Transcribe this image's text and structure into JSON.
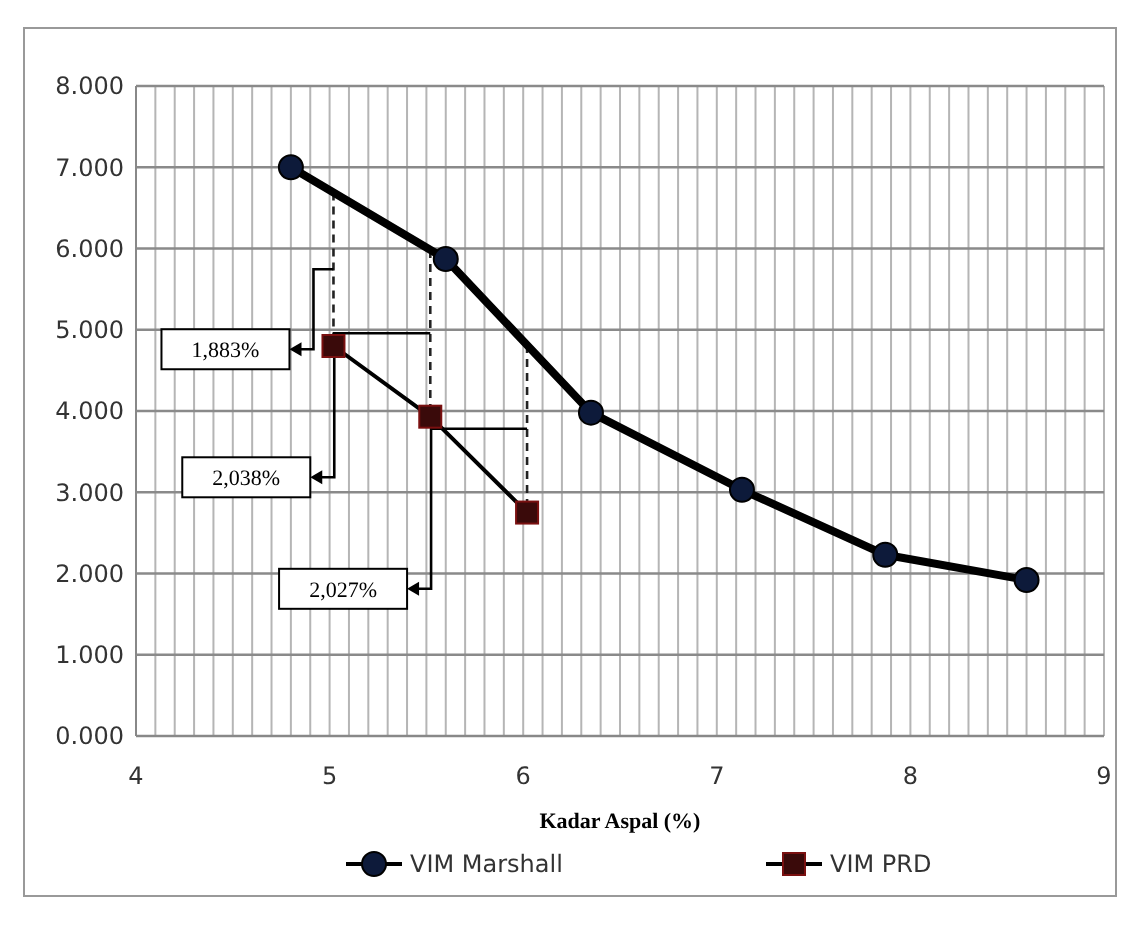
{
  "chart_data": {
    "type": "line",
    "xlabel": "Kadar Aspal (%)",
    "xlim": [
      4,
      9
    ],
    "xticks": [
      4,
      {
        "value": 4.1,
        "label": null
      },
      {
        "value": 4.2,
        "label": null
      },
      {
        "value": 4.3,
        "label": null
      },
      {
        "value": 4.4,
        "label": null
      },
      {
        "value": 4.5,
        "label": null
      },
      {
        "value": 4.6,
        "label": null
      },
      {
        "value": 4.7,
        "label": null
      },
      {
        "value": 4.8,
        "label": null
      },
      {
        "value": 4.9,
        "label": null
      },
      5,
      {
        "value": 5.1,
        "label": null
      },
      {
        "value": 5.2,
        "label": null
      },
      {
        "value": 5.3,
        "label": null
      },
      {
        "value": 5.4,
        "label": null
      },
      {
        "value": 5.5,
        "label": null
      },
      {
        "value": 5.6,
        "label": null
      },
      {
        "value": 5.7,
        "label": null
      },
      {
        "value": 5.8,
        "label": null
      },
      {
        "value": 5.9,
        "label": null
      },
      6,
      {
        "value": 6.1,
        "label": null
      },
      {
        "value": 6.2,
        "label": null
      },
      {
        "value": 6.3,
        "label": null
      },
      {
        "value": 6.4,
        "label": null
      },
      {
        "value": 6.5,
        "label": null
      },
      {
        "value": 6.6,
        "label": null
      },
      {
        "value": 6.7,
        "label": null
      },
      {
        "value": 6.8,
        "label": null
      },
      {
        "value": 6.9,
        "label": null
      },
      7,
      {
        "value": 7.1,
        "label": null
      },
      {
        "value": 7.2,
        "label": null
      },
      {
        "value": 7.3,
        "label": null
      },
      {
        "value": 7.4,
        "label": null
      },
      {
        "value": 7.5,
        "label": null
      },
      {
        "value": 7.6,
        "label": null
      },
      {
        "value": 7.7,
        "label": null
      },
      {
        "value": 7.8,
        "label": null
      },
      {
        "value": 7.9,
        "label": null
      },
      8,
      {
        "value": 8.1,
        "label": null
      },
      {
        "value": 8.2,
        "label": null
      },
      {
        "value": 8.3,
        "label": null
      },
      {
        "value": 8.4,
        "label": null
      },
      {
        "value": 8.5,
        "label": null
      },
      {
        "value": 8.6,
        "label": null
      },
      {
        "value": 8.7,
        "label": null
      },
      {
        "value": 8.8,
        "label": null
      },
      {
        "value": 8.9,
        "label": null
      },
      9
    ],
    "ylim": [
      0,
      8
    ],
    "yticks": [
      {
        "value": 0,
        "label": "0.000"
      },
      {
        "value": 1,
        "label": "1.000"
      },
      {
        "value": 2,
        "label": "2.000"
      },
      {
        "value": 3,
        "label": "3.000"
      },
      {
        "value": 4,
        "label": "4.000"
      },
      {
        "value": 5,
        "label": "5.000"
      },
      {
        "value": 6,
        "label": "6.000"
      },
      {
        "value": 7,
        "label": "7.000"
      },
      {
        "value": 8,
        "label": "8.000"
      }
    ],
    "grid": true,
    "legend": "bottom",
    "line_style": "solid",
    "series": [
      {
        "name": "VIM Marshall",
        "color": "#000000",
        "marker": "circle",
        "x": [
          4.8,
          5.6,
          6.35,
          7.13,
          7.87,
          8.6
        ],
        "values": [
          7.0,
          5.87,
          3.98,
          3.03,
          2.23,
          1.92
        ]
      },
      {
        "name": "VIM PRD",
        "color": "#000000",
        "marker": "square",
        "x": [
          5.02,
          5.52,
          6.02
        ],
        "values": [
          4.8,
          3.93,
          2.75
        ]
      }
    ],
    "annotations": [
      "1,883%",
      "2,038%",
      "2,027%"
    ]
  }
}
